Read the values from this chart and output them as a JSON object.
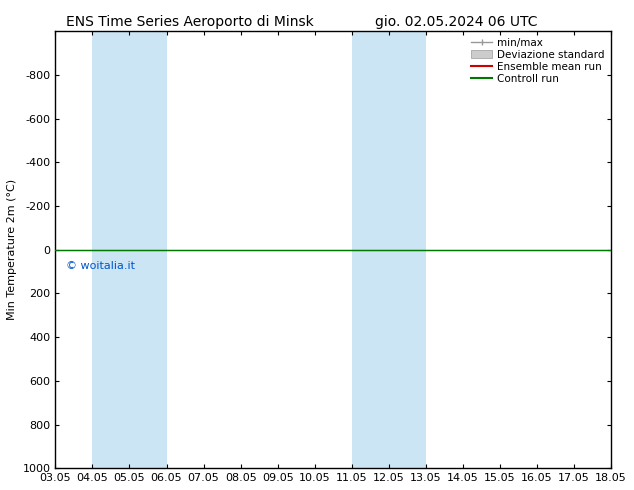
{
  "title_left": "ENS Time Series Aeroporto di Minsk",
  "title_right": "gio. 02.05.2024 06 UTC",
  "ylabel": "Min Temperature 2m (°C)",
  "ylim_bottom": 1000,
  "ylim_top": -1000,
  "yticks": [
    -800,
    -600,
    -400,
    -200,
    0,
    200,
    400,
    600,
    800,
    1000
  ],
  "xtick_labels": [
    "03.05",
    "04.05",
    "05.05",
    "06.05",
    "07.05",
    "08.05",
    "09.05",
    "10.05",
    "11.05",
    "12.05",
    "13.05",
    "14.05",
    "15.05",
    "16.05",
    "17.05",
    "18.05"
  ],
  "xtick_values": [
    0,
    1,
    2,
    3,
    4,
    5,
    6,
    7,
    8,
    9,
    10,
    11,
    12,
    13,
    14,
    15
  ],
  "blue_bands": [
    [
      1.0,
      2.0
    ],
    [
      2.0,
      3.0
    ],
    [
      8.0,
      9.0
    ],
    [
      9.0,
      10.0
    ]
  ],
  "blue_band_color": "#cce5f5",
  "green_line_y": 0,
  "red_line_y": 0,
  "watermark": "© woitalia.it",
  "watermark_color": "#0055cc",
  "legend_min_max_color": "#999999",
  "legend_std_color": "#cccccc",
  "legend_ensemble_color": "#cc0000",
  "legend_control_color": "#007700",
  "background_color": "#ffffff",
  "font_size_title": 10,
  "font_size_axis": 8,
  "font_size_legend": 7.5,
  "font_size_watermark": 8
}
